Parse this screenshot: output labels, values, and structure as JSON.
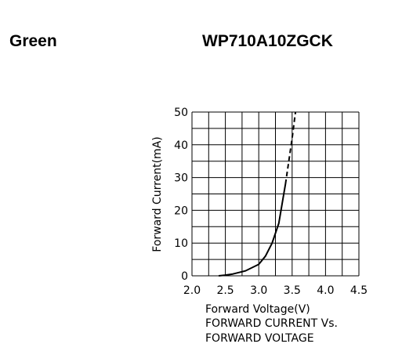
{
  "header": {
    "color_name": "Green",
    "part_number": "WP710A10ZGCK"
  },
  "chart_data": {
    "type": "line",
    "xlabel": "Forward Voltage(V)",
    "ylabel": "Forward Current(mA)",
    "caption": [
      "FORWARD CURRENT Vs.",
      "FORWARD VOLTAGE"
    ],
    "xlim": [
      2.0,
      4.5
    ],
    "ylim": [
      0,
      50
    ],
    "xticks": [
      {
        "value": 2.0,
        "label": "2.0"
      },
      2.5,
      {
        "value": 3.0,
        "label": "3.0"
      },
      3.5,
      {
        "value": 4.0,
        "label": "4.0"
      },
      4.5
    ],
    "yticks": [
      0,
      10,
      20,
      30,
      40,
      50
    ],
    "xgrid": [
      2.0,
      2.25,
      2.5,
      2.75,
      3.0,
      3.25,
      3.5,
      3.75,
      4.0,
      4.25,
      4.5
    ],
    "ygrid": [
      0,
      5,
      10,
      15,
      20,
      25,
      30,
      35,
      40,
      45,
      50
    ],
    "grid": true,
    "series": [
      {
        "color": "#000000",
        "dashed": false,
        "x": [
          2.4,
          2.5,
          2.6,
          2.8,
          3.0,
          3.1,
          3.2,
          3.3,
          3.35,
          3.4
        ],
        "values": [
          0,
          0.2,
          0.5,
          1.5,
          3.5,
          6,
          10,
          16,
          22,
          28
        ]
      },
      {
        "color": "#000000",
        "dashed": true,
        "x": [
          3.4,
          3.45,
          3.5,
          3.55
        ],
        "values": [
          28,
          35,
          42,
          50
        ]
      }
    ]
  }
}
